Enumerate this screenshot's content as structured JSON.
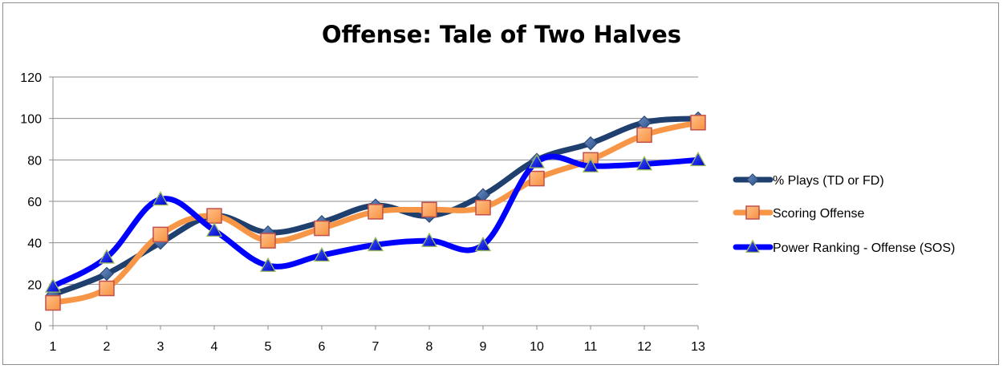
{
  "chart_data": {
    "type": "line",
    "title": "Offense: Tale of Two Halves",
    "xlabel": "",
    "ylabel": "",
    "categories": [
      "1",
      "2",
      "3",
      "4",
      "5",
      "6",
      "7",
      "8",
      "9",
      "10",
      "11",
      "12",
      "13"
    ],
    "ylim": [
      0,
      120
    ],
    "yticks": [
      0,
      20,
      40,
      60,
      80,
      100,
      120
    ],
    "grid": true,
    "legend_position": "right",
    "series": [
      {
        "name": "% Plays (TD or FD)",
        "color": "#1f3f6e",
        "marker": "diamond",
        "values": [
          15,
          25,
          40,
          53,
          45,
          50,
          58,
          53,
          63,
          80,
          88,
          98,
          100
        ]
      },
      {
        "name": "Scoring Offense",
        "color": "#f79646",
        "marker": "square",
        "values": [
          11,
          18,
          44,
          53,
          41,
          47,
          55,
          56,
          57,
          71,
          80,
          92,
          98
        ]
      },
      {
        "name": "Power Ranking - Offense (SOS)",
        "color": "#0000ff",
        "marker": "triangle",
        "values": [
          19,
          33,
          61,
          46,
          29,
          34,
          39,
          41,
          39,
          79,
          77,
          78,
          80
        ]
      }
    ]
  }
}
